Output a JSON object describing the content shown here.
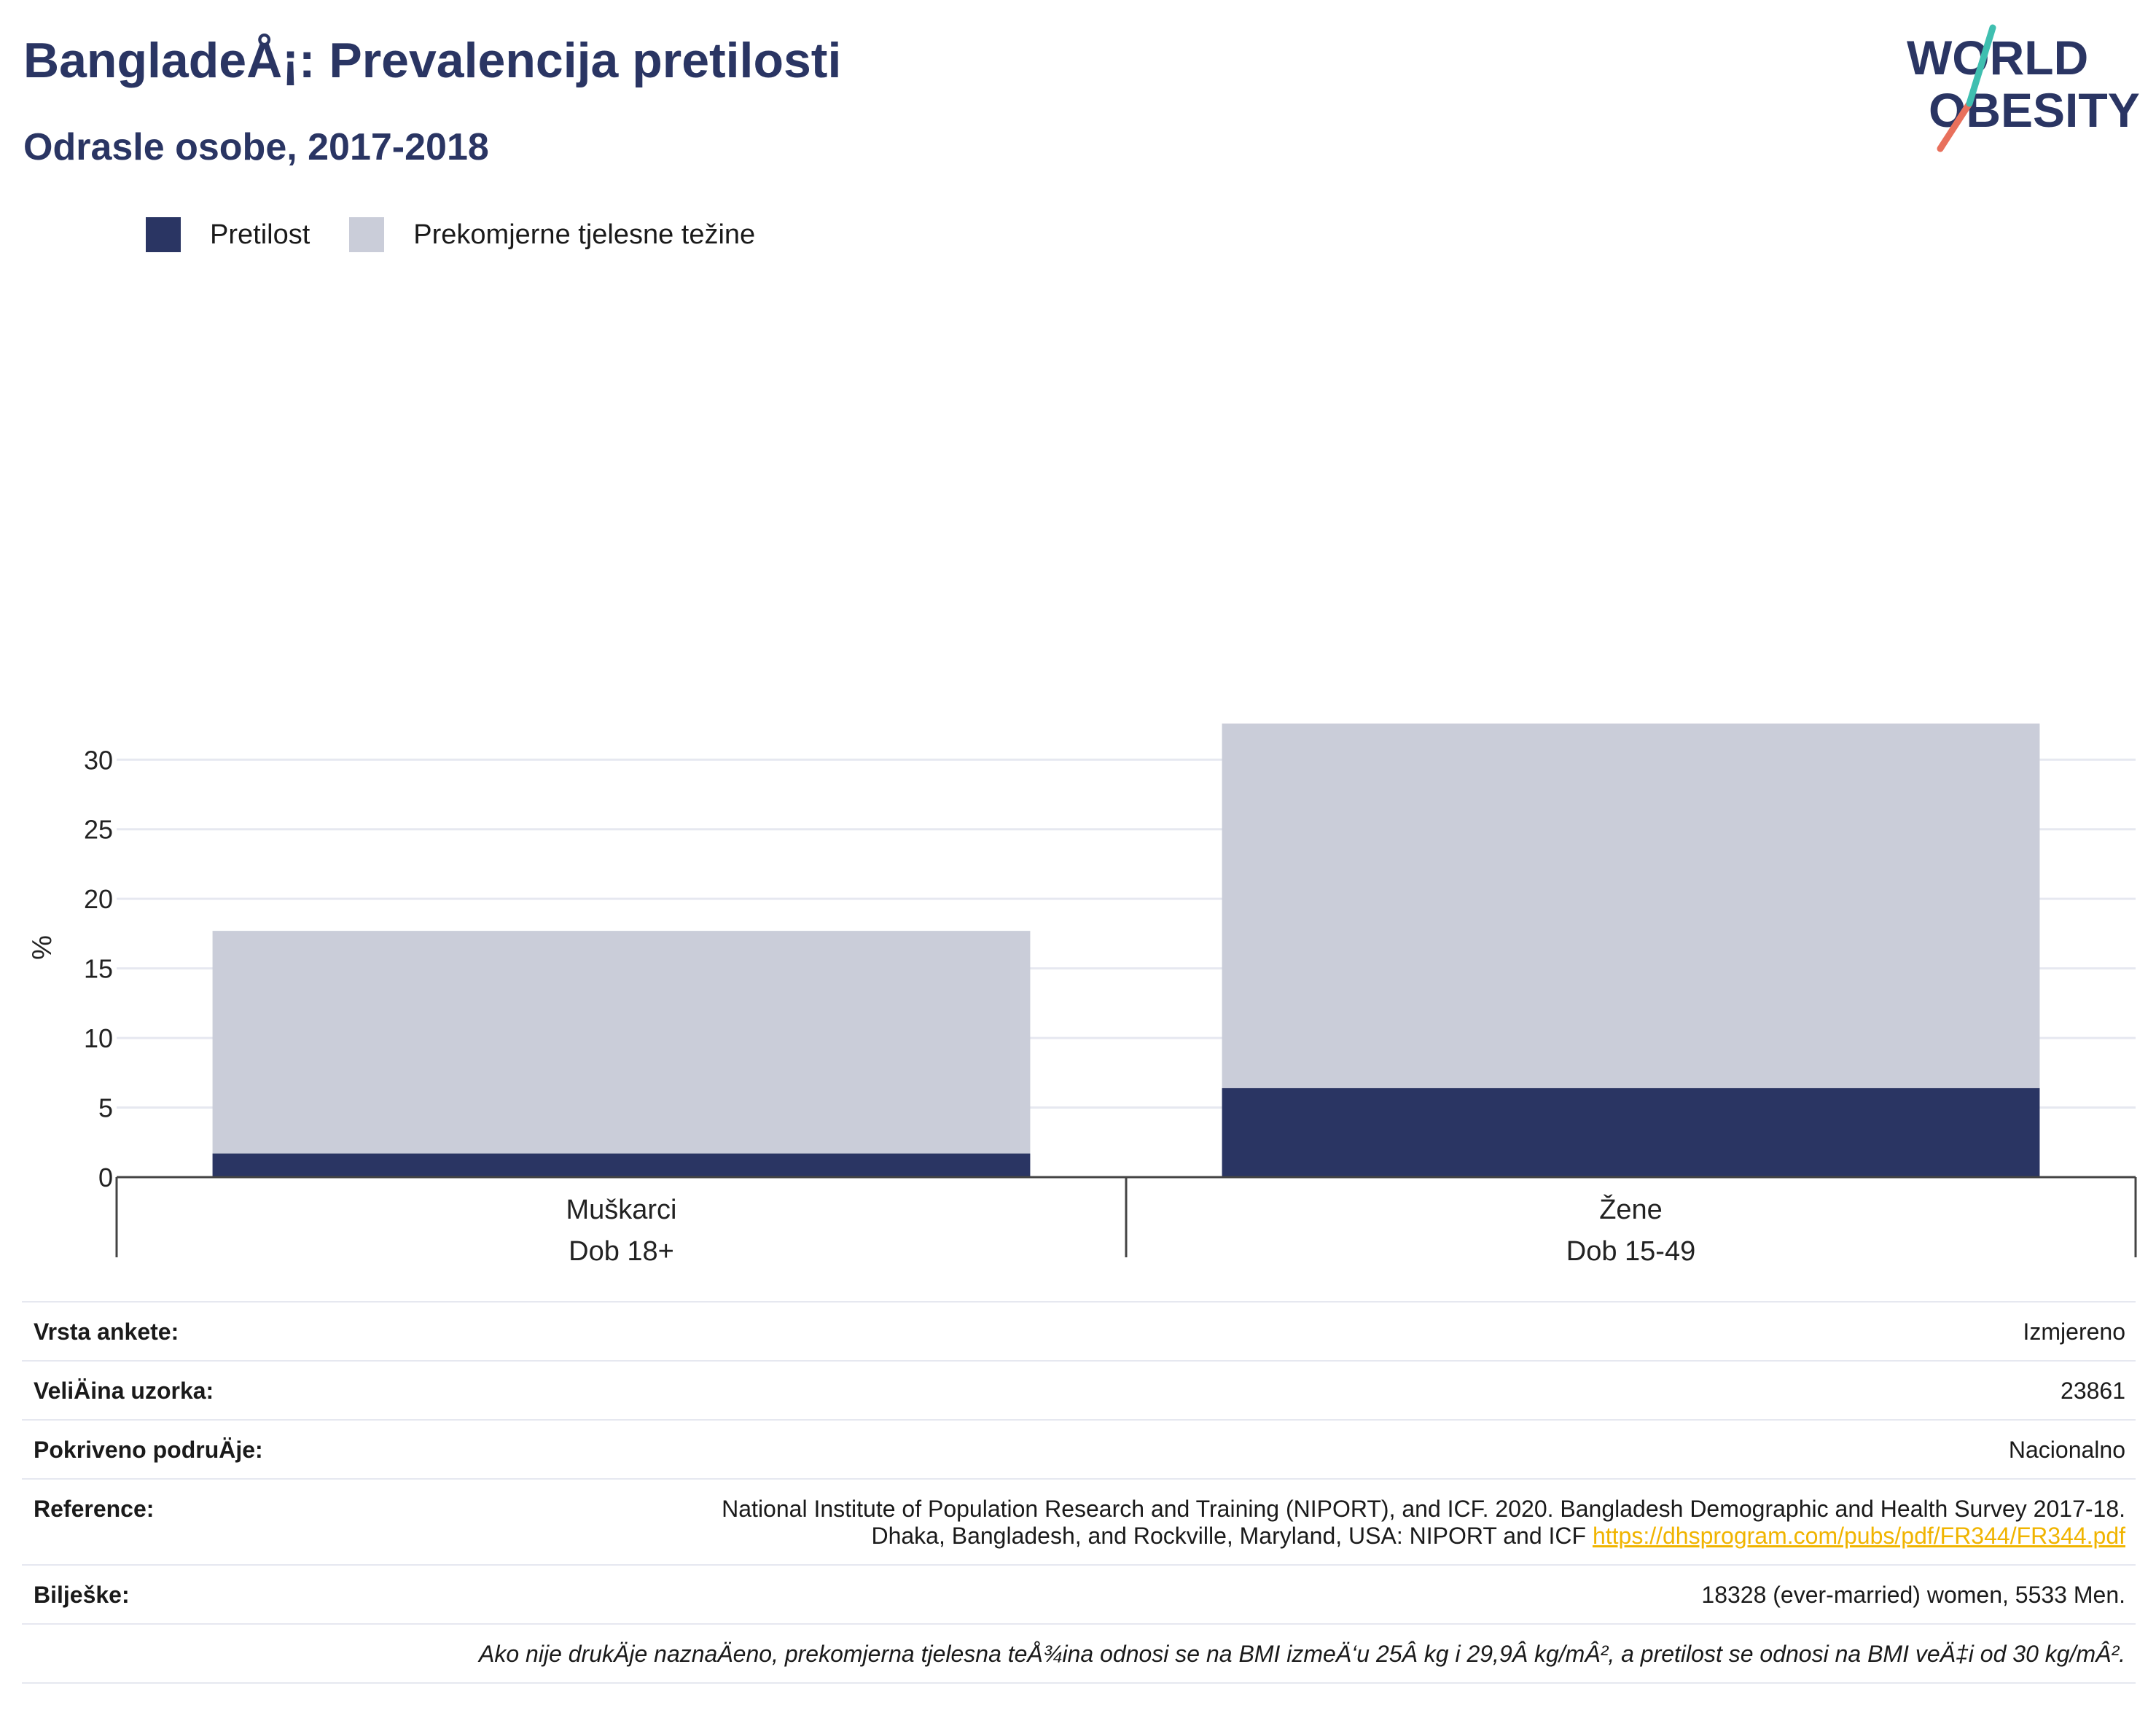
{
  "header": {
    "title": "BangladeÅ¡: Prevalencija pretilosti",
    "subtitle": "Odrasle osobe, 2017-2018"
  },
  "logo": {
    "line1": "WORLD",
    "line2": "OBESITY"
  },
  "legend": [
    {
      "label": "Pretilost",
      "color": "#2a3563"
    },
    {
      "label": "Prekomjerne tjelesne težine",
      "color": "#cacdd9"
    }
  ],
  "chart_data": {
    "type": "bar",
    "stacked": true,
    "categories": [
      "Muškarci\nDob 18+",
      "Žene\nDob 15-49"
    ],
    "category_lines": [
      [
        "Muškarci",
        "Dob 18+"
      ],
      [
        "Žene",
        "Dob 15-49"
      ]
    ],
    "series": [
      {
        "name": "Pretilost",
        "values": [
          1.7,
          6.4
        ],
        "color": "#2a3563"
      },
      {
        "name": "Prekomjerne tjelesne težine",
        "values": [
          16.0,
          26.2
        ],
        "color": "#cacdd9"
      }
    ],
    "ylabel": "%",
    "ylim": [
      0,
      33
    ],
    "yticks": [
      0,
      5,
      10,
      15,
      20,
      25,
      30
    ],
    "grid": true,
    "legend_position": "top-left"
  },
  "info": {
    "rows": [
      {
        "label": "Vrsta ankete:",
        "value": "Izmjereno"
      },
      {
        "label": "VeliÄ\u001fina uzorka:",
        "value": "23861"
      },
      {
        "label": "Pokriveno podruÄ\u001fje:",
        "value": "Nacionalno"
      }
    ],
    "reference": {
      "label": "Reference:",
      "text1": "National Institute of Population Research and Training (NIPORT), and ICF. 2020. Bangladesh Demographic and Health Survey 2017-18.",
      "text2": "Dhaka, Bangladesh, and Rockville, Maryland, USA: NIPORT and ICF ",
      "link": "https://dhsprogram.com/pubs/pdf/FR344/FR344.pdf"
    },
    "notes": {
      "label": "Bilješke:",
      "value": "18328 (ever-married) women, 5533 Men."
    },
    "footnote": "Ako nije drukÄ\u001fje naznaÄ\u001feno, prekomjerna tjelesna teÅ¾ina odnosi se na BMI izmeÄ‘u 25Â kg i 29,9Â kg/mÂ², a pretilost se odnosi na BMI veÄ‡i od 30 kg/mÂ²."
  }
}
